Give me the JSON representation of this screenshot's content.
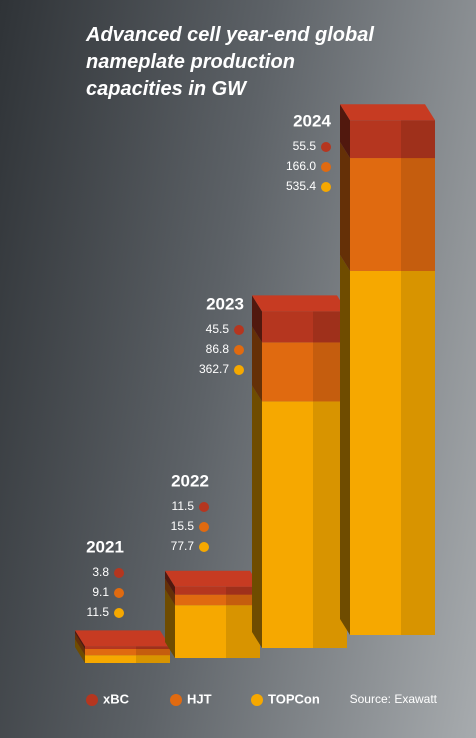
{
  "chart_data": {
    "type": "bar3d-stacked",
    "title": "Advanced cell year-end global nameplate production capacities in GW",
    "categories": [
      "2021",
      "2022",
      "2023",
      "2024"
    ],
    "series": [
      {
        "name": "xBC",
        "color": "#b5361f",
        "values": [
          3.8,
          11.5,
          45.5,
          55.5
        ],
        "value_labels": [
          "3.8",
          "11.5",
          "45.5",
          "55.5"
        ]
      },
      {
        "name": "HJT",
        "color": "#e06a10",
        "values": [
          9.1,
          15.5,
          86.8,
          166.0
        ],
        "value_labels": [
          "9.1",
          "15.5",
          "86.8",
          "166.0"
        ]
      },
      {
        "name": "TOPCon",
        "color": "#f6a800",
        "values": [
          11.5,
          77.7,
          362.7,
          535.4
        ],
        "value_labels": [
          "11.5",
          "77.7",
          "362.7",
          "535.4"
        ]
      }
    ],
    "source": "Source: Exawatt"
  }
}
